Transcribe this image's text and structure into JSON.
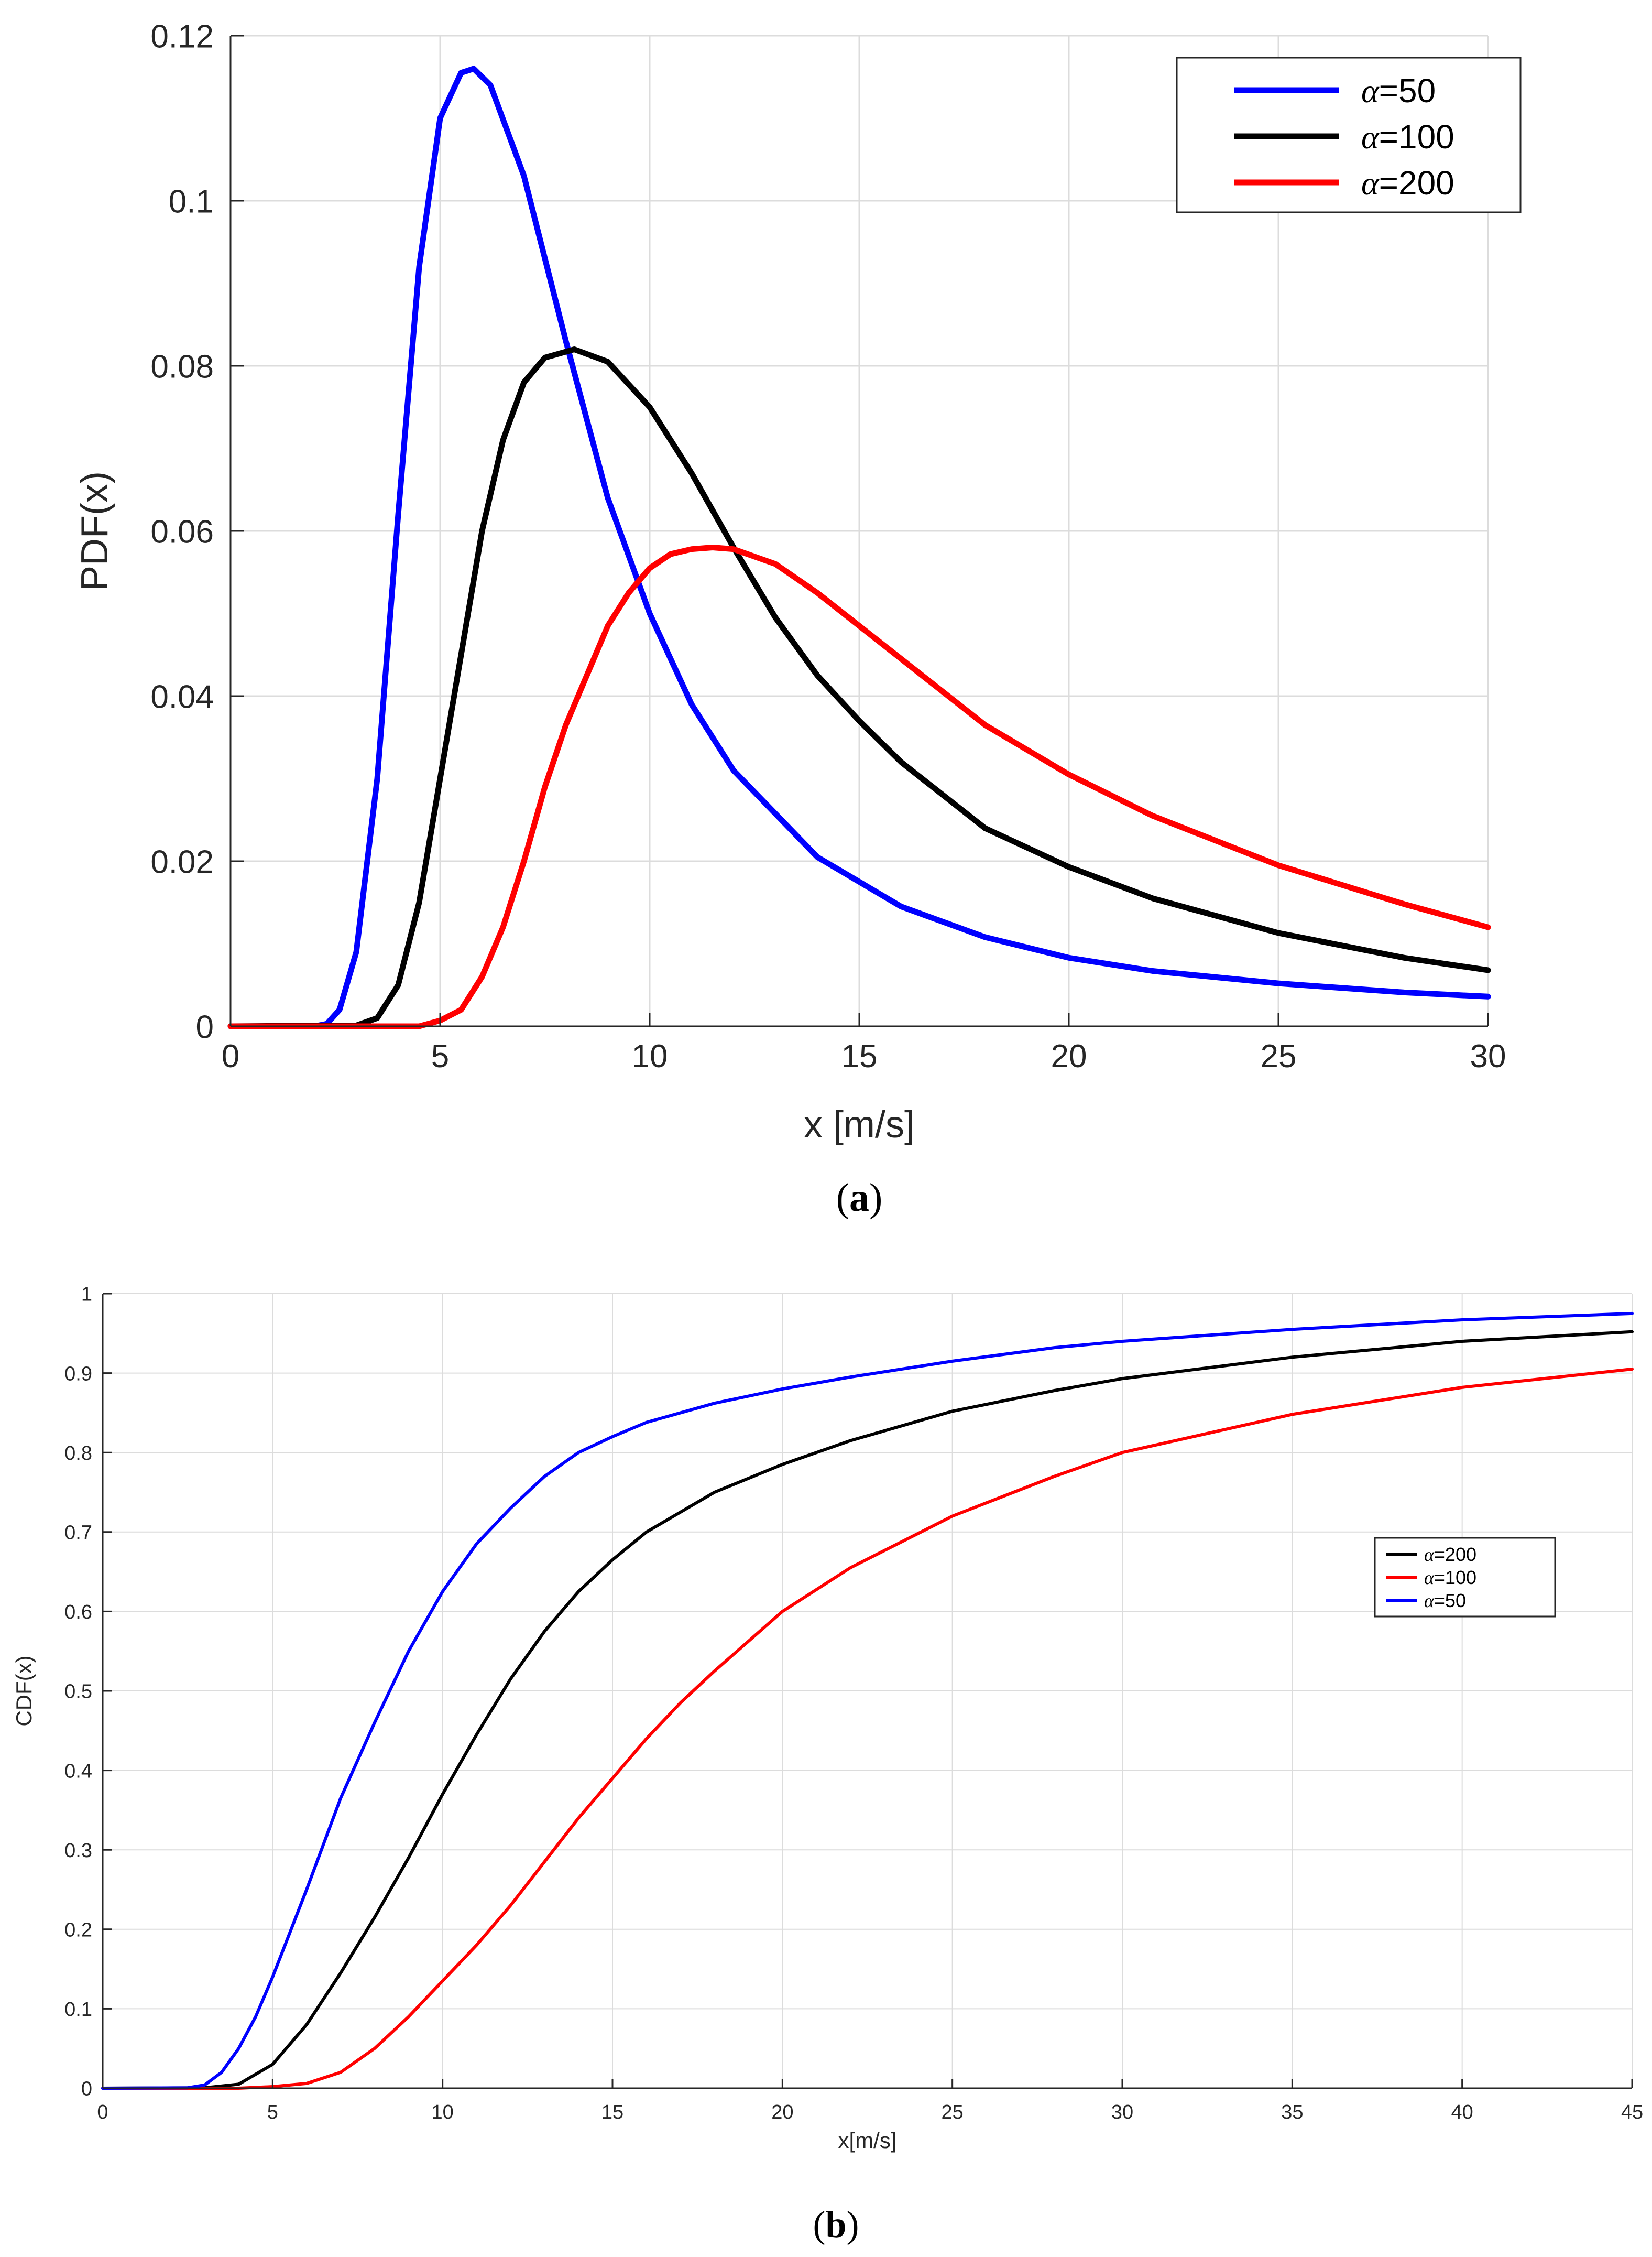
{
  "chart_data": [
    {
      "type": "line",
      "ylabel": "PDF(x)",
      "xlabel": "x [m/s]",
      "caption": {
        "open": "(",
        "letter": "a",
        "close": ")"
      },
      "xlim": [
        0,
        30
      ],
      "ylim": [
        0,
        0.12
      ],
      "xticks": [
        0,
        5,
        10,
        15,
        20,
        25,
        30
      ],
      "yticks": [
        0,
        0.02,
        0.04,
        0.06,
        0.08,
        0.1,
        0.12
      ],
      "xtick_labels": [
        "0",
        "5",
        "10",
        "15",
        "20",
        "25",
        "30"
      ],
      "ytick_labels": [
        "0",
        "0.02",
        "0.04",
        "0.06",
        "0.08",
        "0.1",
        "0.12"
      ],
      "grid": true,
      "legend_position": "top-right",
      "series": [
        {
          "name": "α=50",
          "symbol": "α",
          "suffix": "=50",
          "color": "#0000ff",
          "x": [
            0,
            2,
            2.3,
            2.6,
            3,
            3.5,
            4,
            4.5,
            5,
            5.5,
            5.8,
            6.2,
            7,
            8,
            9,
            10,
            11,
            12,
            14,
            16,
            18,
            20,
            22,
            25,
            28,
            30
          ],
          "y": [
            0,
            0,
            0.0003,
            0.002,
            0.009,
            0.03,
            0.062,
            0.092,
            0.11,
            0.1155,
            0.116,
            0.114,
            0.103,
            0.083,
            0.064,
            0.05,
            0.039,
            0.031,
            0.0205,
            0.0145,
            0.0108,
            0.0083,
            0.0067,
            0.0052,
            0.0041,
            0.0036
          ]
        },
        {
          "name": "α=100",
          "symbol": "α",
          "suffix": "=100",
          "color": "#000000",
          "x": [
            0,
            3,
            3.5,
            4,
            4.5,
            5,
            5.5,
            6,
            6.5,
            7,
            7.5,
            8.2,
            9,
            10,
            11,
            12,
            13,
            14,
            15,
            16,
            18,
            20,
            22,
            25,
            28,
            30
          ],
          "y": [
            0,
            0.0001,
            0.001,
            0.005,
            0.015,
            0.03,
            0.045,
            0.06,
            0.071,
            0.078,
            0.081,
            0.082,
            0.0805,
            0.075,
            0.067,
            0.058,
            0.0495,
            0.0425,
            0.037,
            0.032,
            0.024,
            0.0193,
            0.0155,
            0.0113,
            0.0083,
            0.0068
          ]
        },
        {
          "name": "α=200",
          "symbol": "α",
          "suffix": "=200",
          "color": "#ff0000",
          "x": [
            0,
            4.5,
            5,
            5.5,
            6,
            6.5,
            7,
            7.5,
            8,
            8.5,
            9,
            9.5,
            10,
            10.5,
            11,
            11.5,
            12,
            13,
            14,
            15,
            16,
            18,
            20,
            22,
            25,
            28,
            30
          ],
          "y": [
            0,
            0,
            0.0007,
            0.002,
            0.006,
            0.012,
            0.02,
            0.029,
            0.0365,
            0.0425,
            0.0485,
            0.0525,
            0.0555,
            0.0572,
            0.0578,
            0.058,
            0.0578,
            0.056,
            0.0525,
            0.0485,
            0.0445,
            0.0365,
            0.0305,
            0.0255,
            0.0195,
            0.0148,
            0.012
          ]
        }
      ]
    },
    {
      "type": "line",
      "ylabel": "CDF(x)",
      "xlabel": "x[m/s]",
      "caption": {
        "open": "(",
        "letter": "b",
        "close": ")"
      },
      "xlim": [
        0,
        45
      ],
      "ylim": [
        0,
        1
      ],
      "xticks": [
        0,
        5,
        10,
        15,
        20,
        25,
        30,
        35,
        40,
        45
      ],
      "yticks": [
        0,
        0.1,
        0.2,
        0.3,
        0.4,
        0.5,
        0.6,
        0.7,
        0.8,
        0.9,
        1
      ],
      "xtick_labels": [
        "0",
        "5",
        "10",
        "15",
        "20",
        "25",
        "30",
        "35",
        "40",
        "45"
      ],
      "ytick_labels": [
        "0",
        "0.1",
        "0.2",
        "0.3",
        "0.4",
        "0.5",
        "0.6",
        "0.7",
        "0.8",
        "0.9",
        "1"
      ],
      "grid": true,
      "legend_position": "right",
      "series": [
        {
          "name": "α=200",
          "symbol": "α",
          "suffix": "=200",
          "color": "#000000",
          "x": [
            0,
            3,
            4,
            5,
            6,
            7,
            8,
            9,
            10,
            11,
            12,
            13,
            14,
            15,
            16,
            18,
            20,
            22,
            25,
            28,
            30,
            35,
            40,
            45
          ],
          "y": [
            0,
            0.0005,
            0.005,
            0.03,
            0.08,
            0.145,
            0.215,
            0.29,
            0.37,
            0.445,
            0.515,
            0.575,
            0.625,
            0.665,
            0.7,
            0.75,
            0.785,
            0.815,
            0.852,
            0.878,
            0.893,
            0.92,
            0.94,
            0.952
          ]
        },
        {
          "name": "α=100",
          "symbol": "α",
          "suffix": "=100",
          "color": "#ff0000",
          "x": [
            0,
            4,
            5,
            6,
            7,
            8,
            9,
            10,
            11,
            12,
            13,
            14,
            15,
            16,
            17,
            18,
            20,
            22,
            25,
            28,
            30,
            35,
            40,
            45
          ],
          "y": [
            0,
            0,
            0.002,
            0.006,
            0.02,
            0.05,
            0.09,
            0.135,
            0.18,
            0.23,
            0.285,
            0.34,
            0.39,
            0.44,
            0.485,
            0.525,
            0.6,
            0.655,
            0.72,
            0.77,
            0.8,
            0.848,
            0.882,
            0.905
          ]
        },
        {
          "name": "α=50",
          "symbol": "α",
          "suffix": "=50",
          "color": "#0000ff",
          "x": [
            0,
            2.5,
            3,
            3.5,
            4,
            4.5,
            5,
            6,
            7,
            8,
            9,
            10,
            11,
            12,
            13,
            14,
            15,
            16,
            18,
            20,
            22,
            25,
            28,
            30,
            35,
            40,
            45
          ],
          "y": [
            0,
            0.0005,
            0.004,
            0.02,
            0.05,
            0.09,
            0.14,
            0.25,
            0.365,
            0.46,
            0.55,
            0.625,
            0.685,
            0.73,
            0.77,
            0.8,
            0.82,
            0.838,
            0.862,
            0.88,
            0.895,
            0.915,
            0.932,
            0.94,
            0.955,
            0.967,
            0.975
          ]
        }
      ]
    }
  ]
}
